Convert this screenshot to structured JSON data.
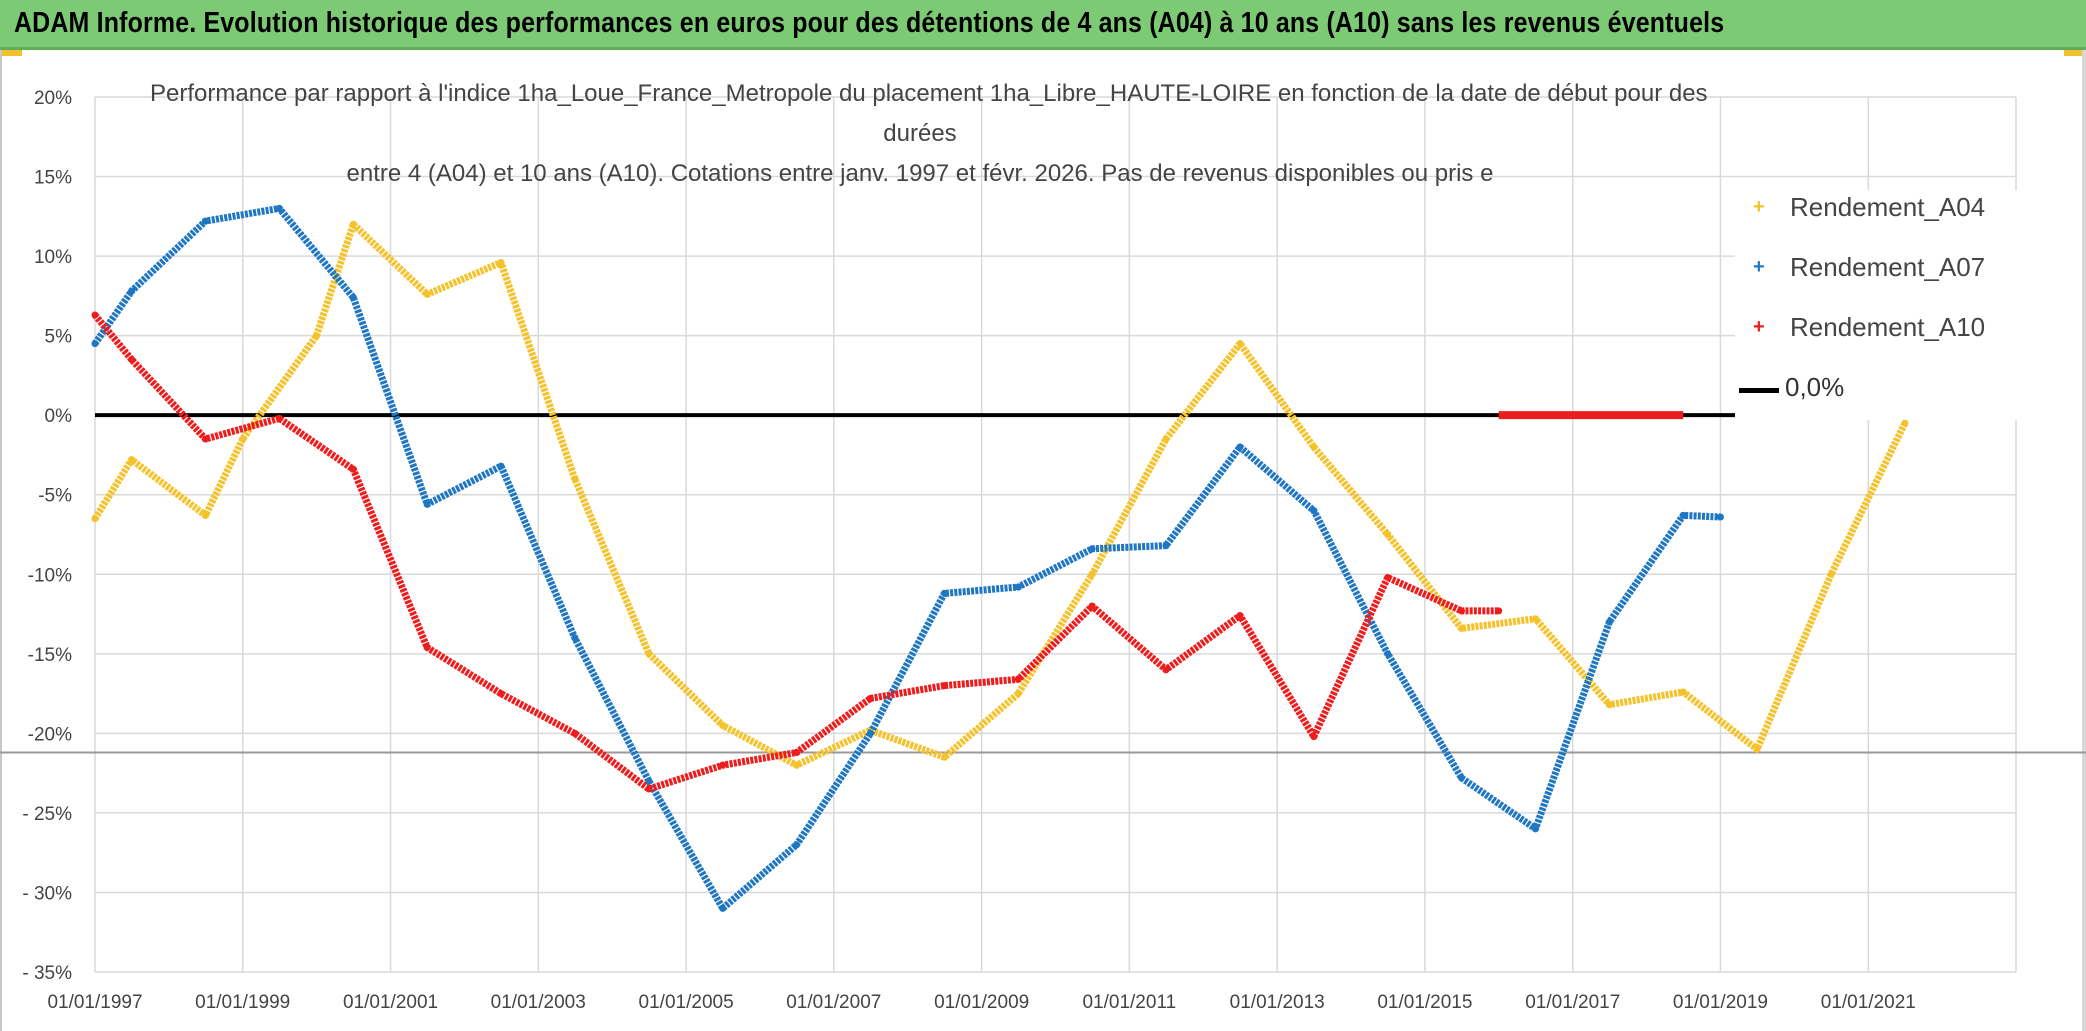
{
  "header": {
    "title": "ADAM Informe. Evolution historique des performances en euros pour des détentions de 4 ans (A04) à 10 ans (A10) sans les revenus éventuels"
  },
  "chart_data": {
    "type": "line",
    "title_lines": [
      "Performance par rapport à l'indice 1ha_Loue_France_Metropole  du placement 1ha_Libre_HAUTE-LOIRE en fonction de la date de début pour des",
      "durées",
      "entre 4 (A04) et 10 ans (A10). Cotations entre janv. 1997 et févr. 2026. Pas de revenus disponibles ou pris e"
    ],
    "xlim": [
      "1997-01-01",
      "2023-01-01"
    ],
    "ylim": [
      -35,
      20
    ],
    "x_ticks": [
      "01/01/1997",
      "01/01/1999",
      "01/01/2001",
      "01/01/2003",
      "01/01/2005",
      "01/01/2007",
      "01/01/2009",
      "01/01/2011",
      "01/01/2013",
      "01/01/2015",
      "01/01/2017",
      "01/01/2019",
      "01/01/2021"
    ],
    "y_ticks": [
      {
        "value": 20,
        "label": "20%"
      },
      {
        "value": 15,
        "label": "15%"
      },
      {
        "value": 10,
        "label": "10%"
      },
      {
        "value": 5,
        "label": "5%"
      },
      {
        "value": 0,
        "label": "0%"
      },
      {
        "value": -5,
        "label": "-5%"
      },
      {
        "value": -10,
        "label": "-10%"
      },
      {
        "value": -15,
        "label": "-15%"
      },
      {
        "value": -20,
        "label": "-20%"
      },
      {
        "value": -25,
        "label": "- 25%"
      },
      {
        "value": -30,
        "label": "- 30%"
      },
      {
        "value": -35,
        "label": "- 35%"
      }
    ],
    "grid": true,
    "legend_position": "right",
    "series": [
      {
        "name": "Rendement_A04",
        "color": "#f5c22b",
        "points": [
          [
            "1997-01-01",
            -6.5
          ],
          [
            "1997-07-01",
            -2.8
          ],
          [
            "1998-07-01",
            -6.3
          ],
          [
            "1999-01-01",
            -1.5
          ],
          [
            "2000-01-01",
            5.0
          ],
          [
            "2000-07-01",
            12.0
          ],
          [
            "2001-07-01",
            7.6
          ],
          [
            "2002-07-01",
            9.6
          ],
          [
            "2003-07-01",
            -4.0
          ],
          [
            "2004-07-01",
            -15.0
          ],
          [
            "2005-07-01",
            -19.5
          ],
          [
            "2006-07-01",
            -22.0
          ],
          [
            "2007-07-01",
            -19.8
          ],
          [
            "2008-07-01",
            -21.5
          ],
          [
            "2009-07-01",
            -17.5
          ],
          [
            "2010-07-01",
            -10.0
          ],
          [
            "2011-07-01",
            -1.5
          ],
          [
            "2012-07-01",
            4.5
          ],
          [
            "2013-07-01",
            -2.0
          ],
          [
            "2014-07-01",
            -7.5
          ],
          [
            "2015-07-01",
            -13.4
          ],
          [
            "2016-07-01",
            -12.8
          ],
          [
            "2017-07-01",
            -18.2
          ],
          [
            "2018-07-01",
            -17.4
          ],
          [
            "2019-07-01",
            -21.0
          ],
          [
            "2020-07-01",
            -10.0
          ],
          [
            "2021-07-01",
            -0.5
          ]
        ]
      },
      {
        "name": "Rendement_A07",
        "color": "#1f77c4",
        "points": [
          [
            "1997-01-01",
            4.5
          ],
          [
            "1997-07-01",
            7.8
          ],
          [
            "1998-07-01",
            12.2
          ],
          [
            "1999-07-01",
            13.0
          ],
          [
            "2000-07-01",
            7.4
          ],
          [
            "2001-07-01",
            -5.6
          ],
          [
            "2002-07-01",
            -3.2
          ],
          [
            "2003-07-01",
            -14.0
          ],
          [
            "2004-07-01",
            -23.0
          ],
          [
            "2005-07-01",
            -31.0
          ],
          [
            "2006-07-01",
            -27.0
          ],
          [
            "2007-07-01",
            -20.0
          ],
          [
            "2008-07-01",
            -11.2
          ],
          [
            "2009-07-01",
            -10.8
          ],
          [
            "2010-07-01",
            -8.4
          ],
          [
            "2011-07-01",
            -8.2
          ],
          [
            "2012-07-01",
            -2.0
          ],
          [
            "2013-07-01",
            -6.0
          ],
          [
            "2014-07-01",
            -15.0
          ],
          [
            "2015-07-01",
            -22.8
          ],
          [
            "2016-07-01",
            -26.0
          ],
          [
            "2017-07-01",
            -13.0
          ],
          [
            "2018-07-01",
            -6.3
          ],
          [
            "2019-01-01",
            -6.4
          ]
        ]
      },
      {
        "name": "Rendement_A10",
        "color": "#ee1c1c",
        "points": [
          [
            "1997-01-01",
            6.3
          ],
          [
            "1997-07-01",
            3.5
          ],
          [
            "1998-07-01",
            -1.5
          ],
          [
            "1999-07-01",
            -0.2
          ],
          [
            "2000-07-01",
            -3.4
          ],
          [
            "2001-07-01",
            -14.6
          ],
          [
            "2002-07-01",
            -17.5
          ],
          [
            "2003-07-01",
            -20.0
          ],
          [
            "2004-07-01",
            -23.5
          ],
          [
            "2005-07-01",
            -22.0
          ],
          [
            "2006-07-01",
            -21.2
          ],
          [
            "2007-07-01",
            -17.8
          ],
          [
            "2008-07-01",
            -17.0
          ],
          [
            "2009-07-01",
            -16.6
          ],
          [
            "2010-07-01",
            -12.0
          ],
          [
            "2011-07-01",
            -16.0
          ],
          [
            "2012-07-01",
            -12.6
          ],
          [
            "2013-07-01",
            -20.2
          ],
          [
            "2014-07-01",
            -10.2
          ],
          [
            "2015-07-01",
            -12.3
          ],
          [
            "2016-01-01",
            -12.3
          ]
        ],
        "flat_segments": [
          {
            "from": "2016-01-01",
            "to": "2018-07-01",
            "value": 0
          }
        ],
        "extra_points": [
          [
            "2023-01-01",
            0
          ]
        ]
      }
    ],
    "reference_line": {
      "name": "0,0%",
      "value": 0,
      "color": "#000000"
    },
    "secondary_line": {
      "value": -21.2,
      "color": "#999999"
    }
  }
}
